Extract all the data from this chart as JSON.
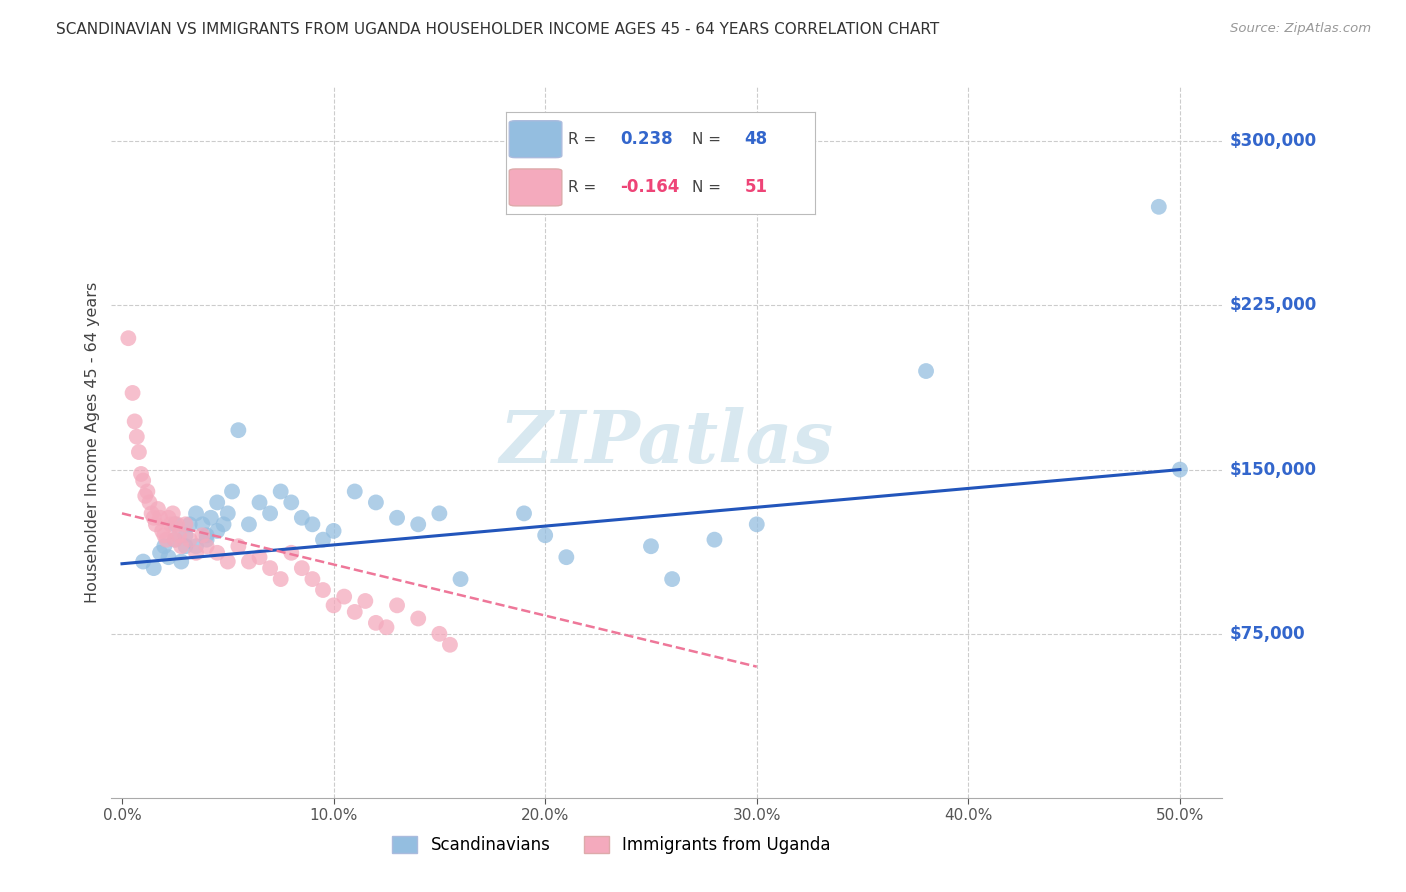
{
  "title": "SCANDINAVIAN VS IMMIGRANTS FROM UGANDA HOUSEHOLDER INCOME AGES 45 - 64 YEARS CORRELATION CHART",
  "source": "Source: ZipAtlas.com",
  "ylabel": "Householder Income Ages 45 - 64 years",
  "xlabel_ticks": [
    "0.0%",
    "10.0%",
    "20.0%",
    "30.0%",
    "40.0%",
    "50.0%"
  ],
  "xlabel_vals": [
    0.0,
    0.1,
    0.2,
    0.3,
    0.4,
    0.5
  ],
  "ytick_labels": [
    "$75,000",
    "$150,000",
    "$225,000",
    "$300,000"
  ],
  "ytick_vals": [
    75000,
    150000,
    225000,
    300000
  ],
  "ylim": [
    0,
    325000
  ],
  "xlim": [
    -0.005,
    0.52
  ],
  "blue_R": 0.238,
  "blue_N": 48,
  "pink_R": -0.164,
  "pink_N": 51,
  "blue_color": "#94BEE0",
  "pink_color": "#F4AABD",
  "blue_line_color": "#2255BB",
  "pink_line_color": "#EE7799",
  "watermark_color": "#D8E8F0",
  "legend_labels": [
    "Scandinavians",
    "Immigrants from Uganda"
  ],
  "blue_scatter_x": [
    0.01,
    0.015,
    0.018,
    0.02,
    0.022,
    0.025,
    0.025,
    0.028,
    0.03,
    0.03,
    0.032,
    0.035,
    0.035,
    0.038,
    0.04,
    0.04,
    0.042,
    0.045,
    0.045,
    0.048,
    0.05,
    0.052,
    0.055,
    0.06,
    0.065,
    0.07,
    0.075,
    0.08,
    0.085,
    0.09,
    0.095,
    0.1,
    0.11,
    0.12,
    0.13,
    0.14,
    0.15,
    0.16,
    0.19,
    0.2,
    0.21,
    0.25,
    0.26,
    0.28,
    0.3,
    0.38,
    0.49,
    0.5
  ],
  "blue_scatter_y": [
    108000,
    105000,
    112000,
    115000,
    110000,
    118000,
    125000,
    108000,
    120000,
    115000,
    125000,
    130000,
    115000,
    125000,
    120000,
    118000,
    128000,
    122000,
    135000,
    125000,
    130000,
    140000,
    168000,
    125000,
    135000,
    130000,
    140000,
    135000,
    128000,
    125000,
    118000,
    122000,
    140000,
    135000,
    128000,
    125000,
    130000,
    100000,
    130000,
    120000,
    110000,
    115000,
    100000,
    118000,
    125000,
    195000,
    270000,
    150000
  ],
  "pink_scatter_x": [
    0.003,
    0.005,
    0.006,
    0.007,
    0.008,
    0.009,
    0.01,
    0.011,
    0.012,
    0.013,
    0.014,
    0.015,
    0.016,
    0.017,
    0.018,
    0.019,
    0.02,
    0.021,
    0.022,
    0.023,
    0.024,
    0.025,
    0.026,
    0.027,
    0.028,
    0.03,
    0.032,
    0.035,
    0.038,
    0.04,
    0.045,
    0.05,
    0.055,
    0.06,
    0.065,
    0.07,
    0.075,
    0.08,
    0.085,
    0.09,
    0.095,
    0.1,
    0.105,
    0.11,
    0.115,
    0.12,
    0.125,
    0.13,
    0.14,
    0.15,
    0.155
  ],
  "pink_scatter_y": [
    210000,
    185000,
    172000,
    165000,
    158000,
    148000,
    145000,
    138000,
    140000,
    135000,
    130000,
    128000,
    125000,
    132000,
    128000,
    122000,
    120000,
    118000,
    128000,
    125000,
    130000,
    118000,
    125000,
    120000,
    115000,
    125000,
    118000,
    112000,
    120000,
    115000,
    112000,
    108000,
    115000,
    108000,
    110000,
    105000,
    100000,
    112000,
    105000,
    100000,
    95000,
    88000,
    92000,
    85000,
    90000,
    80000,
    78000,
    88000,
    82000,
    75000,
    70000
  ],
  "blue_trend_x": [
    0.0,
    0.5
  ],
  "blue_trend_y": [
    107000,
    150000
  ],
  "pink_trend_x": [
    0.0,
    0.3
  ],
  "pink_trend_y": [
    130000,
    60000
  ]
}
